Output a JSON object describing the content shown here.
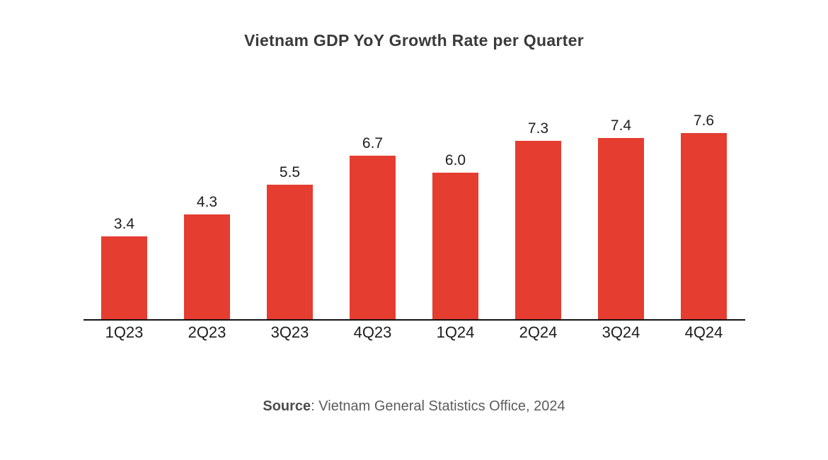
{
  "title": "Vietnam GDP YoY Growth Rate per Quarter",
  "source": {
    "label": "Source",
    "text": ": Vietnam General Statistics Office, 2024"
  },
  "colors": {
    "bar": "#E53D30",
    "title_text": "#3A3A3A",
    "axis": "#111111",
    "label_text": "#1F1F1F",
    "source_text": "#5C5C5C"
  },
  "chart_data": {
    "type": "bar",
    "title": "Vietnam GDP YoY Growth Rate per Quarter",
    "categories": [
      "1Q23",
      "2Q23",
      "3Q23",
      "4Q23",
      "1Q24",
      "2Q24",
      "3Q24",
      "4Q24"
    ],
    "values": [
      3.4,
      4.3,
      5.5,
      6.7,
      6.0,
      7.3,
      7.4,
      7.6
    ],
    "value_labels": [
      "3.4",
      "4.3",
      "5.5",
      "6.7",
      "6.0",
      "7.3",
      "7.4",
      "7.6"
    ],
    "xlabel": "",
    "ylabel": "",
    "ylim": [
      0,
      8
    ],
    "grid": false,
    "legend": "none",
    "bar_color": "#E53D30"
  }
}
